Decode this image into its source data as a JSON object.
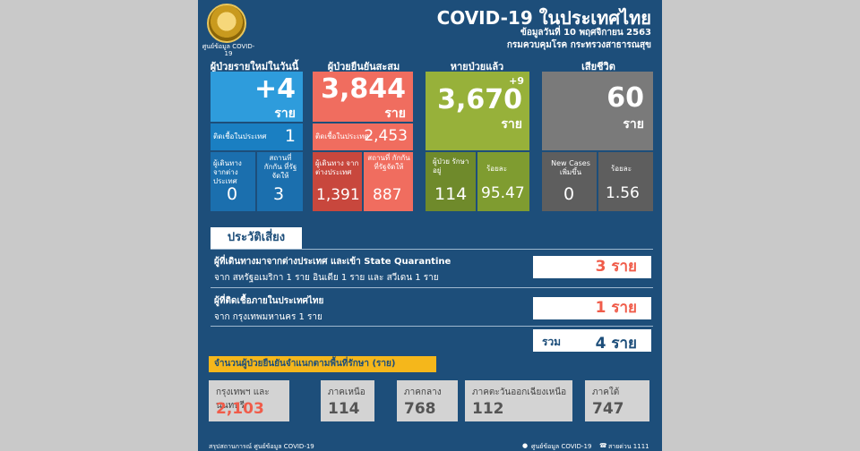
{
  "header": {
    "seal_caption": "ศูนย์ข้อมูล COVID-19",
    "title": "COVID-19 ในประเทศไทย",
    "date_line": "ข้อมูลวันที่ 10 พฤศจิกายน 2563",
    "source_line": "กรมควบคุมโรค กระทรวงสาธารณสุข"
  },
  "new_cases": {
    "heading": "ผู้ป่วยรายใหม่ในวันนี้",
    "value": "+4",
    "unit": "ราย",
    "local_label": "ติดเชื้อในประเทศ",
    "local_value": "1",
    "travel_label": "ผู้เดินทาง จากต่างประเทศ",
    "travel_value": "0",
    "quarantine_label": "สถานที่ กักกัน ที่รัฐจัดให้",
    "quarantine_value": "3",
    "colors": {
      "main": "#2e9cdc",
      "mid": "#1a7fc2",
      "low": "#1b6fae"
    }
  },
  "confirmed": {
    "heading": "ผู้ป่วยยืนยันสะสม",
    "value": "3,844",
    "unit": "ราย",
    "local_label": "ติดเชื้อในประเทศ",
    "local_value": "2,453",
    "travel_label": "ผู้เดินทาง จากต่างประเทศ",
    "travel_value": "1,391",
    "quarantine_label": "สถานที่ กักกัน ที่รัฐจัดให้",
    "quarantine_value": "887",
    "colors": {
      "main": "#f06d5f",
      "dark": "#c8473d"
    }
  },
  "recovered": {
    "heading": "หายป่วยแล้ว",
    "delta": "+9",
    "value": "3,670",
    "unit": "ราย",
    "hospital_label": "ผู้ป่วย รักษาอยู่",
    "hospital_value": "114",
    "percent_label": "ร้อยละ",
    "percent_value": "95.47",
    "colors": {
      "main": "#97b13a",
      "dark": "#6f8a2b",
      "mid": "#7f9c30"
    }
  },
  "deaths": {
    "heading": "เสียชีวิต",
    "value": "60",
    "unit": "ราย",
    "new_label": "New Cases เพิ่มขึ้น",
    "new_value": "0",
    "percent_label": "ร้อยละ",
    "percent_value": "1.56",
    "colors": {
      "main": "#7a7a7a",
      "dark": "#5e5e5e"
    }
  },
  "risk": {
    "heading": "ประวัติเสี่ยง",
    "item1_title": "ผู้ที่เดินทางมาจากต่างประเทศ และเข้า State Quarantine",
    "item1_detail": "จาก สหรัฐอเมริกา 1 ราย อินเดีย 1 ราย และ สวีเดน 1 ราย",
    "item1_value": "3 ราย",
    "item2_title": "ผู้ที่ติดเชื้อภายในประเทศไทย",
    "item2_detail": "จาก กรุงเทพมหานคร 1 ราย",
    "item2_value": "1 ราย",
    "total_label": "รวม",
    "total_value": "4 ราย"
  },
  "regions": {
    "heading": "จำนวนผู้ป่วยยืนยันจำแนกตามพื้นที่รักษา (ราย)",
    "items": [
      {
        "name": "กรุงเทพฯ และนนทบุรี",
        "value": "2,103"
      },
      {
        "name": "ภาคเหนือ",
        "value": "114"
      },
      {
        "name": "ภาคกลาง",
        "value": "768"
      },
      {
        "name": "ภาคตะวันออกเฉียงเหนือ",
        "value": "112"
      },
      {
        "name": "ภาคใต้",
        "value": "747"
      }
    ]
  },
  "footer": {
    "left": "สรุปสถานการณ์ ศูนย์ข้อมูล COVID-19",
    "facebook": "ศูนย์ข้อมูล COVID-19",
    "hotline": "สายด่วน 1111"
  },
  "theme": {
    "background": "#1d4e7a",
    "accent": "#f05c4a",
    "highlight": "#f5b71b"
  }
}
